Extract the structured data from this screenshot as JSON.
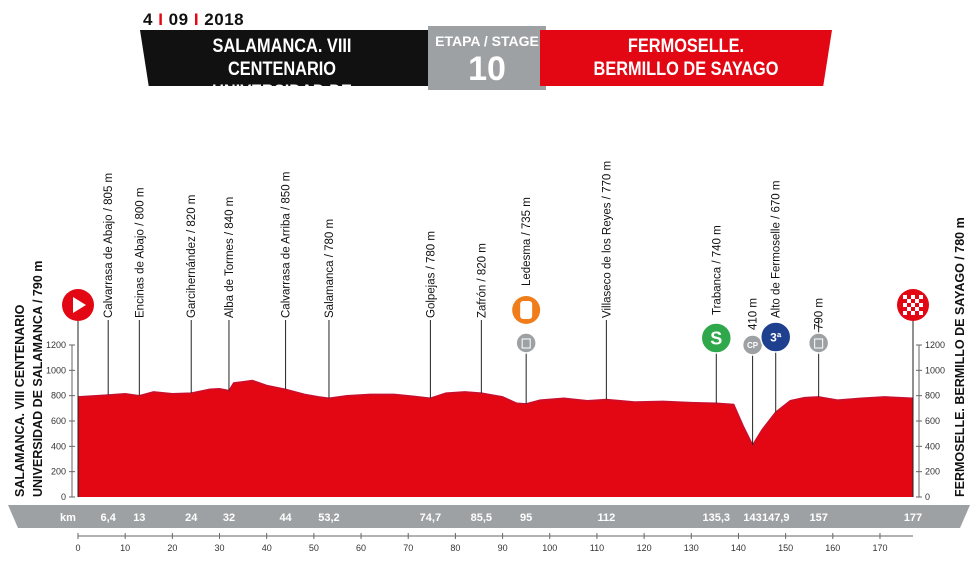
{
  "header": {
    "date_day": "4",
    "date_month": "09",
    "date_year": "2018",
    "start_line1": "SALAMANCA. VIII CENTENARIO",
    "start_line2": "UNIVERSIDAD DE SALAMANCA",
    "stage_label": "ETAPA / STAGE",
    "stage_number": "10",
    "finish_line1": "FERMOSELLE.",
    "finish_line2": "BERMILLO DE SAYAGO"
  },
  "start_side_label": [
    "SALAMANCA. VIII CENTENARIO",
    "UNIVERSIDAD DE SALAMANCA / 790 m"
  ],
  "finish_side_label": "FERMOSELLE. BERMILLO DE SAYAGO / 780 m",
  "km_label": "km",
  "colors": {
    "profile": "#e30613",
    "profile_dark": "#c8102e",
    "band": "#9ea1a4",
    "header_dark": "#111111",
    "sprint": "#2ea84a",
    "climb": "#1f3f8f",
    "feed": "#f07d19",
    "feature_grey": "#9ea1a4"
  },
  "chart_data": {
    "type": "area",
    "title": "",
    "xlim": [
      0,
      177
    ],
    "ylim": [
      0,
      1200
    ],
    "y_ticks": [
      0,
      200,
      400,
      600,
      800,
      1000,
      1200
    ],
    "x_ticks": [
      0,
      10,
      20,
      30,
      40,
      50,
      60,
      70,
      80,
      90,
      100,
      110,
      120,
      130,
      140,
      150,
      160,
      170
    ],
    "profile": [
      {
        "km": 0,
        "alt": 790
      },
      {
        "km": 6.4,
        "alt": 805
      },
      {
        "km": 10,
        "alt": 815
      },
      {
        "km": 13,
        "alt": 800
      },
      {
        "km": 16,
        "alt": 830
      },
      {
        "km": 20,
        "alt": 815
      },
      {
        "km": 24,
        "alt": 820
      },
      {
        "km": 28,
        "alt": 850
      },
      {
        "km": 30,
        "alt": 855
      },
      {
        "km": 32,
        "alt": 840
      },
      {
        "km": 33,
        "alt": 900
      },
      {
        "km": 37,
        "alt": 920
      },
      {
        "km": 40,
        "alt": 880
      },
      {
        "km": 44,
        "alt": 850
      },
      {
        "km": 48,
        "alt": 810
      },
      {
        "km": 51,
        "alt": 790
      },
      {
        "km": 53.2,
        "alt": 780
      },
      {
        "km": 57,
        "alt": 800
      },
      {
        "km": 62,
        "alt": 810
      },
      {
        "km": 67,
        "alt": 810
      },
      {
        "km": 71,
        "alt": 795
      },
      {
        "km": 74.7,
        "alt": 780
      },
      {
        "km": 78,
        "alt": 820
      },
      {
        "km": 82,
        "alt": 830
      },
      {
        "km": 85.5,
        "alt": 820
      },
      {
        "km": 90,
        "alt": 790
      },
      {
        "km": 93,
        "alt": 740
      },
      {
        "km": 95,
        "alt": 735
      },
      {
        "km": 98,
        "alt": 765
      },
      {
        "km": 103,
        "alt": 780
      },
      {
        "km": 108,
        "alt": 760
      },
      {
        "km": 112,
        "alt": 770
      },
      {
        "km": 118,
        "alt": 750
      },
      {
        "km": 124,
        "alt": 755
      },
      {
        "km": 130,
        "alt": 745
      },
      {
        "km": 135.3,
        "alt": 740
      },
      {
        "km": 139,
        "alt": 730
      },
      {
        "km": 141,
        "alt": 560
      },
      {
        "km": 143,
        "alt": 410
      },
      {
        "km": 145,
        "alt": 530
      },
      {
        "km": 147.9,
        "alt": 670
      },
      {
        "km": 151,
        "alt": 760
      },
      {
        "km": 154,
        "alt": 785
      },
      {
        "km": 157,
        "alt": 790
      },
      {
        "km": 161,
        "alt": 765
      },
      {
        "km": 166,
        "alt": 780
      },
      {
        "km": 171,
        "alt": 790
      },
      {
        "km": 177,
        "alt": 780
      }
    ],
    "waypoints": [
      {
        "km": 6.4,
        "km_label": "6,4",
        "label": "Calvarrasa de Abajo / 805 m",
        "alt": 805
      },
      {
        "km": 13,
        "km_label": "13",
        "label": "Encinas de Abajo / 800 m",
        "alt": 800
      },
      {
        "km": 24,
        "km_label": "24",
        "label": "Garcihernández / 820 m",
        "alt": 820
      },
      {
        "km": 32,
        "km_label": "32",
        "label": "Alba de Tormes / 840 m",
        "alt": 840
      },
      {
        "km": 44,
        "km_label": "44",
        "label": "Calvarrasa de Arriba / 850 m",
        "alt": 850
      },
      {
        "km": 53.2,
        "km_label": "53,2",
        "label": "Salamanca / 780 m",
        "alt": 780
      },
      {
        "km": 74.7,
        "km_label": "74,7",
        "label": "Golpejas / 780 m",
        "alt": 780
      },
      {
        "km": 85.5,
        "km_label": "85,5",
        "label": "Zafrón / 820 m",
        "alt": 820
      },
      {
        "km": 95,
        "km_label": "95",
        "label": "Ledesma / 735 m",
        "alt": 735,
        "icon": "feed-zone-icon"
      },
      {
        "km": 112,
        "km_label": "112",
        "label": "Villaseco de los Reyes / 770 m",
        "alt": 770
      },
      {
        "km": 135.3,
        "km_label": "135,3",
        "label": "Trabanca / 740 m",
        "alt": 740,
        "icon": "sprint-icon",
        "icon_text": "S"
      },
      {
        "km": 143,
        "km_label": "143",
        "label": "410 m",
        "alt": 410,
        "icon": "cp-icon",
        "icon_text": "CP"
      },
      {
        "km": 147.9,
        "km_label": "147,9",
        "label": "Alto de Fermoselle / 670 m",
        "alt": 670,
        "icon": "climb-3rd-category-icon",
        "icon_text": "3ª"
      },
      {
        "km": 157,
        "km_label": "157",
        "label": "790 m",
        "alt": 790
      },
      {
        "km": 177,
        "km_label": "177",
        "label": "",
        "alt": 780
      }
    ]
  }
}
